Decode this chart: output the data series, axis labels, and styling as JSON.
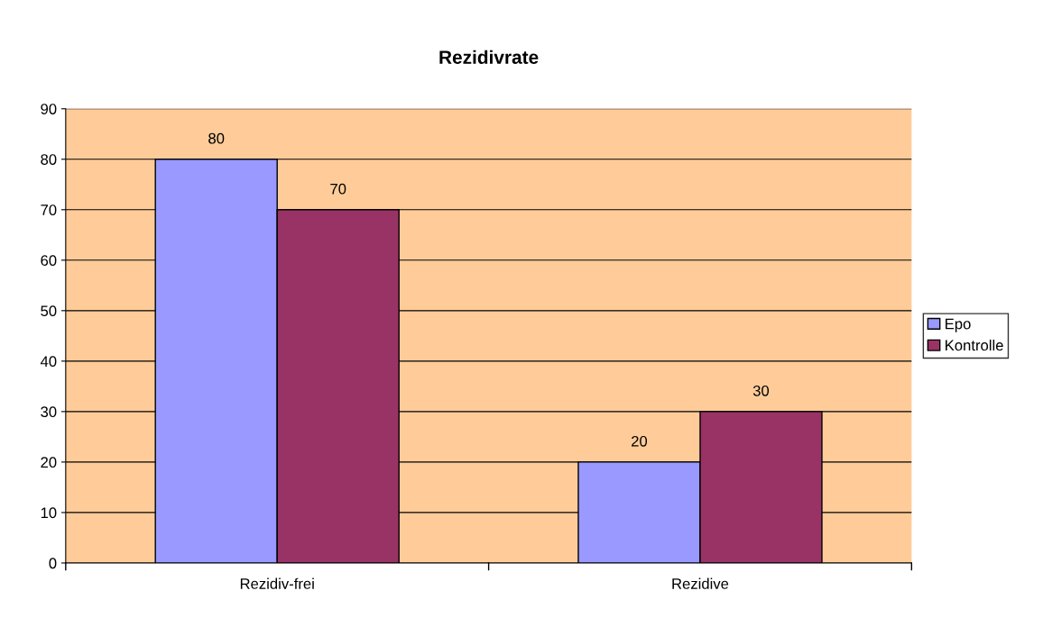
{
  "chart_data": {
    "type": "bar",
    "title": "Rezidivrate",
    "categories": [
      "Rezidiv-frei",
      "Rezidive"
    ],
    "series": [
      {
        "name": "Epo",
        "color": "#9999ff",
        "values": [
          80,
          20
        ]
      },
      {
        "name": "Kontrolle",
        "color": "#993366",
        "values": [
          70,
          30
        ]
      }
    ],
    "ylim": [
      0,
      90
    ],
    "yticks": [
      0,
      10,
      20,
      30,
      40,
      50,
      60,
      70,
      80,
      90
    ],
    "grid": "y",
    "legend": "right",
    "data_labels": true
  }
}
